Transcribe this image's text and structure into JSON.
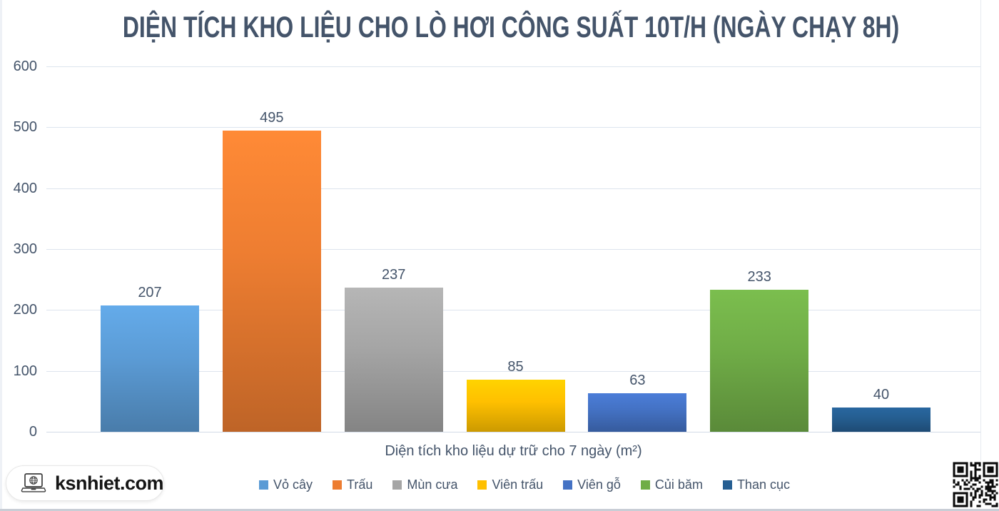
{
  "chart_data": {
    "type": "bar",
    "title": "DIỆN TÍCH KHO LIỆU CHO LÒ HƠI CÔNG SUẤT 10T/H (NGÀY CHẠY 8H)",
    "xlabel": "Diện tích kho liệu dự trữ cho 7 ngày (m²)",
    "ylabel": "",
    "categories": [
      "Vỏ cây",
      "Trấu",
      "Mùn cưa",
      "Viên trấu",
      "Viên gỗ",
      "Củi băm",
      "Than cục"
    ],
    "values": [
      207,
      495,
      237,
      85,
      63,
      233,
      40
    ],
    "series_colors": [
      "#5B9BD5",
      "#ED7D31",
      "#A5A5A5",
      "#FFC000",
      "#4472C4",
      "#70AD47",
      "#255E91"
    ],
    "ylim": [
      0,
      600
    ],
    "ytick_interval": 100,
    "yticks": [
      0,
      100,
      200,
      300,
      400,
      500,
      600
    ],
    "grid": "horizontal",
    "legend_position": "bottom",
    "value_labels_shown": true
  },
  "watermark": {
    "text": "ksnhiet.com",
    "icon": "laptop-globe-icon"
  },
  "qr_code": {
    "name": "qr-code",
    "position": "bottom-right"
  },
  "colors": {
    "text": "#44546A",
    "gridline": "#DDE4EE",
    "background": "#FFFFFF"
  }
}
